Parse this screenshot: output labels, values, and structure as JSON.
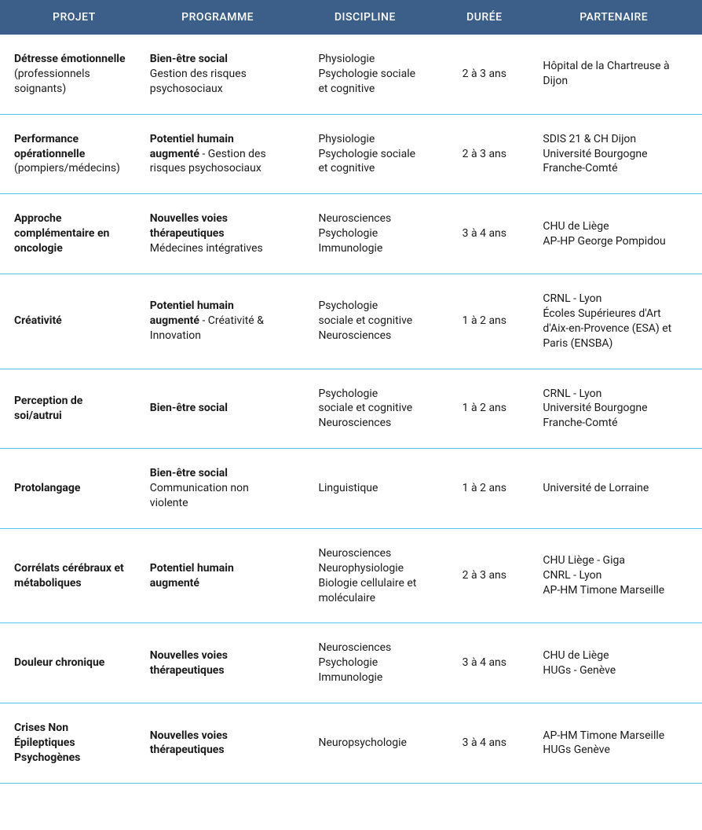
{
  "table": {
    "header_bg": "#3c5f8a",
    "header_color": "#ffffff",
    "row_border_color": "#4fc3e8",
    "text_color": "#1a1a1a",
    "font_size": 14,
    "columns": [
      {
        "key": "projet",
        "label": "PROJET",
        "width_pct": 20
      },
      {
        "key": "programme",
        "label": "PROGRAMME",
        "width_pct": 22
      },
      {
        "key": "discipline",
        "label": "DISCIPLINE",
        "width_pct": 20
      },
      {
        "key": "duree",
        "label": "DURÉE",
        "width_pct": 14
      },
      {
        "key": "partenaire",
        "label": "PARTENAIRE",
        "width_pct": 24
      }
    ],
    "rows": [
      {
        "projet": [
          {
            "text": "Détresse émotionnelle",
            "bold": true
          },
          {
            "text": " (professionnels soignants)",
            "bold": false
          }
        ],
        "programme": [
          {
            "text": "Bien-être social",
            "bold": true,
            "br": true
          },
          {
            "text": "Gestion des risques psychosociaux",
            "bold": false
          }
        ],
        "discipline": [
          {
            "text": "Physiologie",
            "bold": false,
            "br": true
          },
          {
            "text": "Psychologie sociale et cognitive",
            "bold": false
          }
        ],
        "duree": [
          {
            "text": "2 à 3 ans",
            "bold": false
          }
        ],
        "partenaire": [
          {
            "text": "Hôpital de la Chartreuse à Dijon",
            "bold": false
          }
        ]
      },
      {
        "projet": [
          {
            "text": "Performance opérationnelle",
            "bold": true
          },
          {
            "text": " (pompiers/médecins)",
            "bold": false
          }
        ],
        "programme": [
          {
            "text": "Potentiel humain augmenté",
            "bold": true
          },
          {
            "text": " - Gestion des risques psychosociaux",
            "bold": false
          }
        ],
        "discipline": [
          {
            "text": "Physiologie",
            "bold": false,
            "br": true
          },
          {
            "text": "Psychologie sociale et cognitive",
            "bold": false
          }
        ],
        "duree": [
          {
            "text": "2 à 3 ans",
            "bold": false
          }
        ],
        "partenaire": [
          {
            "text": "SDIS 21 & CH Dijon",
            "bold": false,
            "br": true
          },
          {
            "text": "Université Bourgogne Franche-Comté",
            "bold": false
          }
        ]
      },
      {
        "projet": [
          {
            "text": "Approche complémentaire en oncologie",
            "bold": true
          }
        ],
        "programme": [
          {
            "text": "Nouvelles voies thérapeutiques",
            "bold": true,
            "br": true
          },
          {
            "text": "Médecines intégratives",
            "bold": false
          }
        ],
        "discipline": [
          {
            "text": "Neurosciences",
            "bold": false,
            "br": true
          },
          {
            "text": "Psychologie",
            "bold": false,
            "br": true
          },
          {
            "text": "Immunologie",
            "bold": false
          }
        ],
        "duree": [
          {
            "text": "3 à 4 ans",
            "bold": false
          }
        ],
        "partenaire": [
          {
            "text": "CHU de Liège",
            "bold": false,
            "br": true
          },
          {
            "text": "AP-HP George Pompidou",
            "bold": false
          }
        ]
      },
      {
        "projet": [
          {
            "text": "Créativité",
            "bold": true
          }
        ],
        "programme": [
          {
            "text": "Potentiel humain augmenté",
            "bold": true
          },
          {
            "text": " - Créativité & Innovation",
            "bold": false
          }
        ],
        "discipline": [
          {
            "text": "Psychologie",
            "bold": false,
            "br": true
          },
          {
            "text": "sociale et cognitive",
            "bold": false,
            "br": true
          },
          {
            "text": "Neurosciences",
            "bold": false
          }
        ],
        "duree": [
          {
            "text": "1 à 2 ans",
            "bold": false
          }
        ],
        "partenaire": [
          {
            "text": "CRNL - Lyon",
            "bold": false,
            "br": true
          },
          {
            "text": "Écoles Supérieures d'Art d'Aix-en-Provence (ESA) et Paris (ENSBA)",
            "bold": false
          }
        ]
      },
      {
        "projet": [
          {
            "text": "Perception de soi/autrui",
            "bold": true
          }
        ],
        "programme": [
          {
            "text": "Bien-être social",
            "bold": true
          }
        ],
        "discipline": [
          {
            "text": "Psychologie",
            "bold": false,
            "br": true
          },
          {
            "text": "sociale et cognitive",
            "bold": false,
            "br": true
          },
          {
            "text": "Neurosciences",
            "bold": false
          }
        ],
        "duree": [
          {
            "text": "1 à 2 ans",
            "bold": false
          }
        ],
        "partenaire": [
          {
            "text": "CRNL - Lyon",
            "bold": false,
            "br": true
          },
          {
            "text": "Université Bourgogne Franche-Comté",
            "bold": false
          }
        ]
      },
      {
        "projet": [
          {
            "text": "Protolangage",
            "bold": true
          }
        ],
        "programme": [
          {
            "text": "Bien-être social",
            "bold": true,
            "br": true
          },
          {
            "text": "Communication non violente",
            "bold": false
          }
        ],
        "discipline": [
          {
            "text": "Linguistique",
            "bold": false
          }
        ],
        "duree": [
          {
            "text": "1 à 2 ans",
            "bold": false
          }
        ],
        "partenaire": [
          {
            "text": "Université de Lorraine",
            "bold": false
          }
        ]
      },
      {
        "projet": [
          {
            "text": "Corrélats cérébraux et métaboliques",
            "bold": true
          }
        ],
        "programme": [
          {
            "text": "Potentiel humain augmenté",
            "bold": true
          }
        ],
        "discipline": [
          {
            "text": "Neurosciences",
            "bold": false,
            "br": true
          },
          {
            "text": "Neurophysiologie",
            "bold": false,
            "br": true
          },
          {
            "text": "Biologie cellulaire et moléculaire",
            "bold": false
          }
        ],
        "duree": [
          {
            "text": "2 à 3 ans",
            "bold": false
          }
        ],
        "partenaire": [
          {
            "text": "CHU Liège - Giga",
            "bold": false,
            "br": true
          },
          {
            "text": "CNRL - Lyon",
            "bold": false,
            "br": true
          },
          {
            "text": "AP-HM Timone Marseille",
            "bold": false
          }
        ]
      },
      {
        "projet": [
          {
            "text": "Douleur chronique",
            "bold": true
          }
        ],
        "programme": [
          {
            "text": "Nouvelles voies thérapeutiques",
            "bold": true
          }
        ],
        "discipline": [
          {
            "text": "Neurosciences",
            "bold": false,
            "br": true
          },
          {
            "text": "Psychologie",
            "bold": false,
            "br": true
          },
          {
            "text": "Immunologie",
            "bold": false
          }
        ],
        "duree": [
          {
            "text": "3 à 4 ans",
            "bold": false
          }
        ],
        "partenaire": [
          {
            "text": "CHU de Liège",
            "bold": false,
            "br": true
          },
          {
            "text": "HUGs - Genève",
            "bold": false
          }
        ]
      },
      {
        "projet": [
          {
            "text": "Crises Non Épileptiques Psychogènes",
            "bold": true
          }
        ],
        "programme": [
          {
            "text": "Nouvelles voies thérapeutiques",
            "bold": true
          }
        ],
        "discipline": [
          {
            "text": "Neuropsychologie",
            "bold": false
          }
        ],
        "duree": [
          {
            "text": "3 à 4 ans",
            "bold": false
          }
        ],
        "partenaire": [
          {
            "text": "AP-HM Timone Marseille",
            "bold": false,
            "br": true
          },
          {
            "text": "HUGs Genève",
            "bold": false
          }
        ]
      }
    ]
  }
}
